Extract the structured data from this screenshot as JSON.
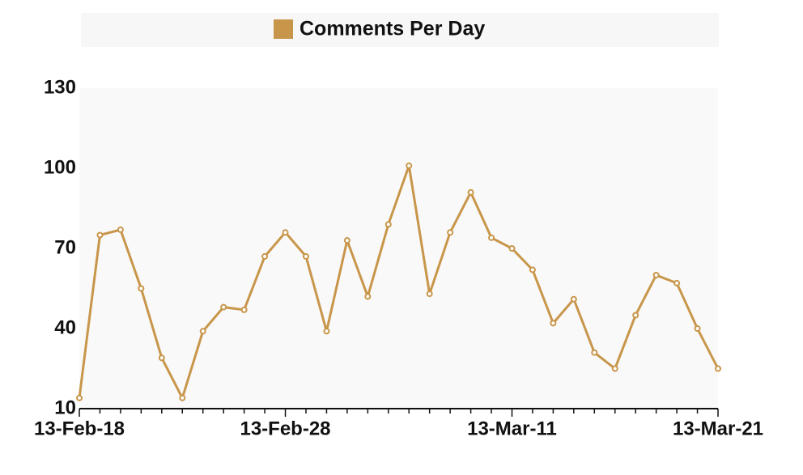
{
  "chart_data": {
    "type": "line",
    "categories": [
      "13-Feb-18",
      null,
      null,
      null,
      null,
      null,
      null,
      null,
      null,
      null,
      "13-Feb-28",
      null,
      null,
      null,
      null,
      null,
      null,
      null,
      null,
      null,
      null,
      "13-Mar-11",
      null,
      null,
      null,
      null,
      null,
      null,
      null,
      null,
      null,
      "13-Mar-21"
    ],
    "series": [
      {
        "name": "Comments Per Day",
        "color": "#c8964a",
        "values": [
          14,
          75,
          77,
          55,
          29,
          14,
          39,
          48,
          47,
          67,
          76,
          67,
          39,
          73,
          52,
          79,
          101,
          53,
          76,
          91,
          74,
          70,
          62,
          42,
          51,
          31,
          25,
          45,
          60,
          57,
          40,
          25
        ]
      }
    ],
    "ylim": [
      10,
      130
    ],
    "yticks": [
      10,
      40,
      70,
      100,
      130
    ],
    "grid": false,
    "legend": "top"
  }
}
